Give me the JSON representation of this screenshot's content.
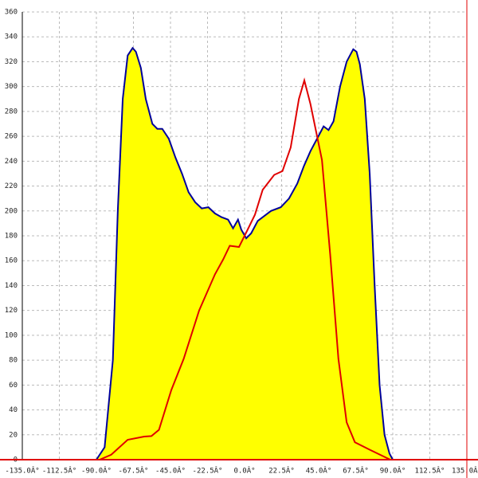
{
  "chart_data": {
    "type": "area-line",
    "xlim": [
      -135,
      135
    ],
    "ylim": [
      0,
      360
    ],
    "grid": true,
    "xticks": [
      {
        "value": -135,
        "label": "-135.0Â°"
      },
      {
        "value": -112.5,
        "label": "-112.5Â°"
      },
      {
        "value": -90,
        "label": "-90.0Â°"
      },
      {
        "value": -67.5,
        "label": "-67.5Â°"
      },
      {
        "value": -45,
        "label": "-45.0Â°"
      },
      {
        "value": -22.5,
        "label": "-22.5Â°"
      },
      {
        "value": 0,
        "label": "0.0Â°"
      },
      {
        "value": 22.5,
        "label": "22.5Â°"
      },
      {
        "value": 45,
        "label": "45.0Â°"
      },
      {
        "value": 67.5,
        "label": "67.5Â°"
      },
      {
        "value": 90,
        "label": "90.0Â°"
      },
      {
        "value": 112.5,
        "label": "112.5Â°"
      },
      {
        "value": 135,
        "label": "135.0Â°"
      }
    ],
    "yticks": [
      0,
      20,
      40,
      60,
      80,
      100,
      120,
      140,
      160,
      180,
      200,
      220,
      240,
      260,
      280,
      300,
      320,
      340,
      360
    ],
    "series": [
      {
        "kind": "area",
        "color": "#00009c",
        "fill": "#ffff00",
        "x": [
          -90,
          -85,
          -80,
          -77,
          -74,
          -71,
          -68,
          -66,
          -63,
          -60,
          -56,
          -53,
          -50,
          -46,
          -42,
          -38,
          -34,
          -30,
          -26,
          -22,
          -18,
          -14,
          -10,
          -7,
          -4,
          -2,
          1,
          4,
          8,
          12,
          16,
          22,
          27,
          32,
          36,
          40,
          44,
          48,
          51,
          54,
          58,
          62,
          66,
          68,
          70,
          73,
          76,
          79,
          82,
          85,
          88,
          90
        ],
        "values": [
          0,
          10,
          80,
          200,
          290,
          325,
          331,
          328,
          315,
          290,
          270,
          266,
          266,
          258,
          243,
          230,
          215,
          207,
          202,
          203,
          198,
          195,
          193,
          186,
          193,
          185,
          178,
          182,
          192,
          196,
          200,
          203,
          210,
          222,
          236,
          248,
          258,
          268,
          265,
          272,
          300,
          320,
          330,
          328,
          318,
          290,
          230,
          140,
          60,
          20,
          5,
          0
        ]
      },
      {
        "kind": "line",
        "color": "#e00000",
        "x": [
          -90,
          -88,
          -81,
          -71,
          -61,
          -56.6,
          -52,
          -44.5,
          -37,
          -27.6,
          -18,
          -13,
          -9,
          -3.4,
          1.5,
          6.3,
          11,
          18,
          23,
          28,
          33,
          36.3,
          40,
          47,
          52,
          57,
          62,
          67,
          76,
          88.5,
          90
        ],
        "values": [
          0,
          0,
          4,
          16,
          18.6,
          19,
          24,
          56,
          81,
          120,
          149,
          161,
          172,
          171,
          184,
          197,
          217,
          229,
          232,
          251,
          290,
          305,
          286,
          241,
          165,
          81,
          30,
          14,
          8,
          0,
          0
        ]
      }
    ]
  }
}
